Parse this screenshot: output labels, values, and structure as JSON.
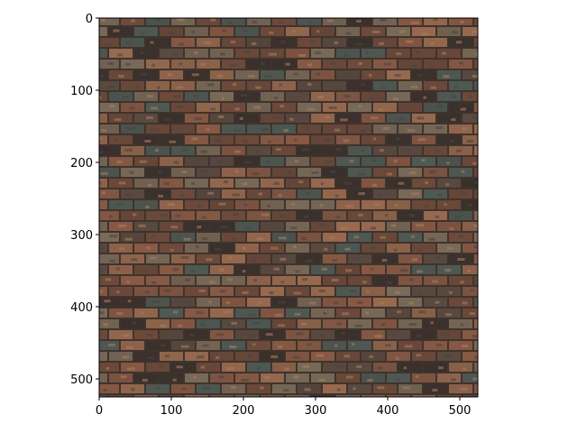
{
  "image": {
    "description_icon": "brick-wall-texture-image",
    "palette": [
      "#6e4a3a",
      "#8a5a44",
      "#5a4a40",
      "#7a6a58",
      "#4e5a54",
      "#9a6a4e",
      "#3a302c"
    ],
    "mortar_color": "#3e342e"
  },
  "chart_data": {
    "type": "image",
    "xlim": [
      0,
      525
    ],
    "ylim": [
      525,
      0
    ],
    "xticks": [
      0,
      100,
      200,
      300,
      400,
      500
    ],
    "yticks": [
      0,
      100,
      200,
      300,
      400,
      500
    ],
    "xtick_labels": [
      "0",
      "100",
      "200",
      "300",
      "400",
      "500"
    ],
    "ytick_labels": [
      "0",
      "100",
      "200",
      "300",
      "400",
      "500"
    ]
  }
}
